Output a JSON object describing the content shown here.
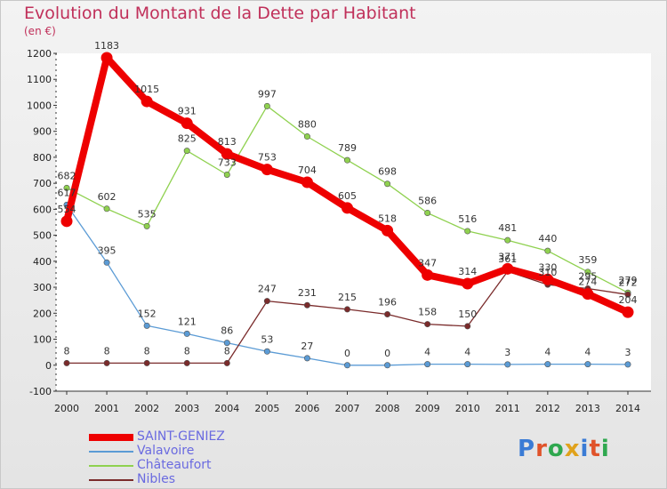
{
  "header": {
    "title": "Evolution du Montant de la Dette par Habitant",
    "unit": "(en €)"
  },
  "logo": {
    "text": "Proxiti",
    "letter_colors": [
      "#3a7bd5",
      "#e0532a",
      "#2fa84f",
      "#e0a21c",
      "#3a7bd5",
      "#e0532a",
      "#2fa84f"
    ]
  },
  "chart_data": {
    "type": "line",
    "x": [
      "2000",
      "2001",
      "2002",
      "2003",
      "2004",
      "2005",
      "2006",
      "2007",
      "2008",
      "2009",
      "2010",
      "2011",
      "2012",
      "2013",
      "2014"
    ],
    "ylim": [
      -100,
      1200
    ],
    "yticks": [
      -100,
      0,
      100,
      200,
      300,
      400,
      500,
      600,
      700,
      800,
      900,
      1000,
      1100,
      1200
    ],
    "grid": false,
    "legend_position": "bottom-left",
    "series": [
      {
        "name": "SAINT-GENIEZ",
        "color": "#ee0000",
        "emphasis": true,
        "values": [
          554,
          1183,
          1015,
          931,
          813,
          753,
          704,
          605,
          518,
          347,
          314,
          371,
          330,
          274,
          204
        ]
      },
      {
        "name": "Valavoire",
        "color": "#5b9bd5",
        "values": [
          617,
          395,
          152,
          121,
          86,
          53,
          27,
          0,
          0,
          4,
          4,
          3,
          4,
          4,
          3
        ]
      },
      {
        "name": "Châteaufort",
        "color": "#8fd14f",
        "values": [
          682,
          602,
          535,
          825,
          733,
          997,
          880,
          789,
          698,
          586,
          516,
          481,
          440,
          359,
          279
        ]
      },
      {
        "name": "Nibles",
        "color": "#7a2b2b",
        "values": [
          8,
          8,
          8,
          8,
          8,
          247,
          231,
          215,
          196,
          158,
          150,
          361,
          310,
          295,
          272
        ]
      }
    ]
  }
}
